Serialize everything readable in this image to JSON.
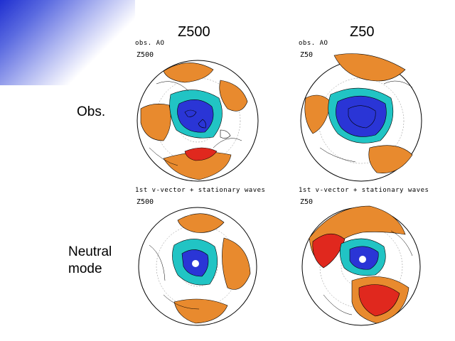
{
  "columns": {
    "left": "Z500",
    "right": "Z50"
  },
  "rows": {
    "top": "Obs.",
    "bottom_line1": "Neutral",
    "bottom_line2": "mode"
  },
  "panels": {
    "obs_z500": {
      "title": "obs. AO",
      "var": "Z500"
    },
    "obs_z50": {
      "title": "obs. AO",
      "var": "Z50"
    },
    "mode_z500": {
      "title": "1st v-vector + stationary waves",
      "var": "Z500"
    },
    "mode_z50": {
      "title": "1st v-vector + stationary waves",
      "var": "Z50"
    }
  },
  "colors": {
    "positive_light": "#e88a2e",
    "positive_strong": "#e0281e",
    "negative_light": "#21c4c4",
    "negative_strong": "#2a35d6"
  }
}
